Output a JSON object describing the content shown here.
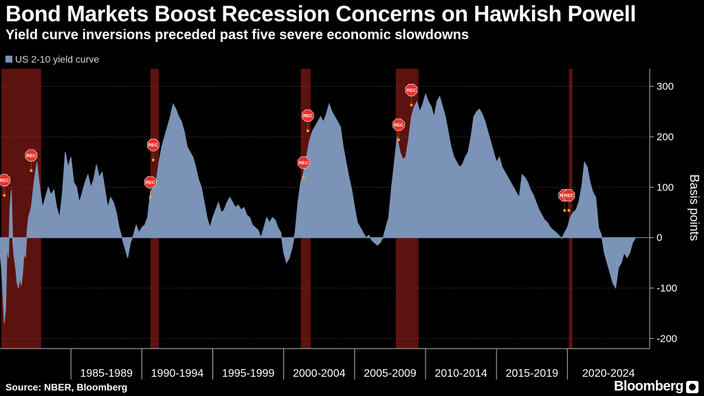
{
  "header": {
    "title": "Bond Markets Boost Recession Concerns on Hawkish Powell",
    "subtitle": "Yield curve inversions preceded past five severe economic slowdowns"
  },
  "footer": {
    "source": "Source: NBER, Bloomberg",
    "brand": "Bloomberg"
  },
  "colors": {
    "series": "#7b93b6",
    "recession": "#5c120f",
    "grid": "#555555",
    "marker": "#e8322a",
    "dot": "#f4a12b"
  },
  "chart_data": {
    "type": "area",
    "title": "Bond Markets Boost Recession Concerns on Hawkish Powell",
    "ylabel": "Basis points",
    "xlim": [
      1980.0,
      2025.8
    ],
    "ylim": [
      -220,
      335
    ],
    "yticks": [
      300,
      200,
      100,
      0,
      -100,
      -200
    ],
    "ytick_labels": [
      "300",
      "200",
      "100",
      "0",
      "-100",
      "-200"
    ],
    "grid": true,
    "legend": "top-left",
    "series": [
      {
        "name": "US 2-10 yield curve",
        "points": [
          [
            1980.0,
            -30
          ],
          [
            1980.1,
            -60
          ],
          [
            1980.2,
            -110
          ],
          [
            1980.3,
            -170
          ],
          [
            1980.4,
            -140
          ],
          [
            1980.5,
            -20
          ],
          [
            1980.6,
            -40
          ],
          [
            1980.7,
            60
          ],
          [
            1980.8,
            95
          ],
          [
            1980.9,
            -10
          ],
          [
            1981.0,
            -40
          ],
          [
            1981.1,
            -60
          ],
          [
            1981.2,
            -90
          ],
          [
            1981.3,
            -100
          ],
          [
            1981.4,
            -80
          ],
          [
            1981.5,
            -95
          ],
          [
            1981.6,
            -70
          ],
          [
            1981.7,
            -30
          ],
          [
            1981.8,
            -40
          ],
          [
            1981.9,
            10
          ],
          [
            1982.0,
            40
          ],
          [
            1982.2,
            60
          ],
          [
            1982.4,
            110
          ],
          [
            1982.6,
            150
          ],
          [
            1982.8,
            100
          ],
          [
            1983.0,
            60
          ],
          [
            1983.2,
            80
          ],
          [
            1983.4,
            100
          ],
          [
            1983.6,
            85
          ],
          [
            1983.8,
            95
          ],
          [
            1984.0,
            60
          ],
          [
            1984.2,
            40
          ],
          [
            1984.4,
            90
          ],
          [
            1984.6,
            170
          ],
          [
            1984.8,
            140
          ],
          [
            1985.0,
            160
          ],
          [
            1985.2,
            110
          ],
          [
            1985.4,
            100
          ],
          [
            1985.6,
            70
          ],
          [
            1985.8,
            90
          ],
          [
            1986.0,
            110
          ],
          [
            1986.2,
            125
          ],
          [
            1986.4,
            100
          ],
          [
            1986.6,
            115
          ],
          [
            1986.8,
            145
          ],
          [
            1987.0,
            120
          ],
          [
            1987.2,
            130
          ],
          [
            1987.4,
            95
          ],
          [
            1987.6,
            60
          ],
          [
            1987.8,
            80
          ],
          [
            1988.0,
            70
          ],
          [
            1988.2,
            50
          ],
          [
            1988.4,
            20
          ],
          [
            1988.6,
            0
          ],
          [
            1988.8,
            -20
          ],
          [
            1989.0,
            -40
          ],
          [
            1989.2,
            -10
          ],
          [
            1989.4,
            5
          ],
          [
            1989.6,
            25
          ],
          [
            1989.8,
            10
          ],
          [
            1990.0,
            20
          ],
          [
            1990.2,
            25
          ],
          [
            1990.4,
            40
          ],
          [
            1990.6,
            90
          ],
          [
            1990.8,
            100
          ],
          [
            1991.0,
            110
          ],
          [
            1991.2,
            150
          ],
          [
            1991.4,
            180
          ],
          [
            1991.6,
            200
          ],
          [
            1991.8,
            220
          ],
          [
            1992.0,
            240
          ],
          [
            1992.2,
            265
          ],
          [
            1992.4,
            255
          ],
          [
            1992.6,
            240
          ],
          [
            1992.8,
            230
          ],
          [
            1993.0,
            210
          ],
          [
            1993.2,
            180
          ],
          [
            1993.4,
            170
          ],
          [
            1993.6,
            160
          ],
          [
            1993.8,
            140
          ],
          [
            1994.0,
            115
          ],
          [
            1994.2,
            100
          ],
          [
            1994.4,
            70
          ],
          [
            1994.6,
            40
          ],
          [
            1994.8,
            20
          ],
          [
            1995.0,
            40
          ],
          [
            1995.2,
            55
          ],
          [
            1995.4,
            70
          ],
          [
            1995.6,
            50
          ],
          [
            1995.8,
            55
          ],
          [
            1996.0,
            70
          ],
          [
            1996.2,
            80
          ],
          [
            1996.4,
            70
          ],
          [
            1996.6,
            60
          ],
          [
            1996.8,
            65
          ],
          [
            1997.0,
            55
          ],
          [
            1997.2,
            60
          ],
          [
            1997.4,
            45
          ],
          [
            1997.6,
            40
          ],
          [
            1997.8,
            25
          ],
          [
            1998.0,
            20
          ],
          [
            1998.2,
            15
          ],
          [
            1998.4,
            0
          ],
          [
            1998.6,
            20
          ],
          [
            1998.8,
            40
          ],
          [
            1999.0,
            30
          ],
          [
            1999.2,
            40
          ],
          [
            1999.4,
            35
          ],
          [
            1999.6,
            20
          ],
          [
            1999.8,
            10
          ],
          [
            2000.0,
            -30
          ],
          [
            2000.2,
            -50
          ],
          [
            2000.4,
            -40
          ],
          [
            2000.6,
            -20
          ],
          [
            2000.8,
            10
          ],
          [
            2001.0,
            70
          ],
          [
            2001.2,
            110
          ],
          [
            2001.4,
            130
          ],
          [
            2001.6,
            160
          ],
          [
            2001.8,
            190
          ],
          [
            2002.0,
            210
          ],
          [
            2002.2,
            220
          ],
          [
            2002.4,
            230
          ],
          [
            2002.6,
            240
          ],
          [
            2002.8,
            230
          ],
          [
            2003.0,
            245
          ],
          [
            2003.2,
            265
          ],
          [
            2003.4,
            250
          ],
          [
            2003.6,
            240
          ],
          [
            2003.8,
            230
          ],
          [
            2004.0,
            220
          ],
          [
            2004.2,
            180
          ],
          [
            2004.4,
            150
          ],
          [
            2004.6,
            120
          ],
          [
            2004.8,
            95
          ],
          [
            2005.0,
            60
          ],
          [
            2005.2,
            30
          ],
          [
            2005.4,
            20
          ],
          [
            2005.6,
            10
          ],
          [
            2005.8,
            0
          ],
          [
            2006.0,
            5
          ],
          [
            2006.2,
            -5
          ],
          [
            2006.4,
            -10
          ],
          [
            2006.6,
            -15
          ],
          [
            2006.8,
            -10
          ],
          [
            2007.0,
            0
          ],
          [
            2007.2,
            20
          ],
          [
            2007.4,
            40
          ],
          [
            2007.6,
            100
          ],
          [
            2007.8,
            150
          ],
          [
            2008.0,
            200
          ],
          [
            2008.2,
            170
          ],
          [
            2008.4,
            155
          ],
          [
            2008.6,
            160
          ],
          [
            2008.8,
            195
          ],
          [
            2009.0,
            240
          ],
          [
            2009.2,
            260
          ],
          [
            2009.4,
            270
          ],
          [
            2009.6,
            250
          ],
          [
            2009.8,
            265
          ],
          [
            2010.0,
            285
          ],
          [
            2010.2,
            270
          ],
          [
            2010.4,
            260
          ],
          [
            2010.6,
            240
          ],
          [
            2010.8,
            270
          ],
          [
            2011.0,
            280
          ],
          [
            2011.2,
            260
          ],
          [
            2011.4,
            240
          ],
          [
            2011.6,
            210
          ],
          [
            2011.8,
            180
          ],
          [
            2012.0,
            160
          ],
          [
            2012.2,
            150
          ],
          [
            2012.4,
            140
          ],
          [
            2012.6,
            145
          ],
          [
            2012.8,
            160
          ],
          [
            2013.0,
            170
          ],
          [
            2013.2,
            200
          ],
          [
            2013.4,
            240
          ],
          [
            2013.6,
            250
          ],
          [
            2013.8,
            255
          ],
          [
            2014.0,
            245
          ],
          [
            2014.2,
            230
          ],
          [
            2014.4,
            210
          ],
          [
            2014.6,
            190
          ],
          [
            2014.8,
            170
          ],
          [
            2015.0,
            150
          ],
          [
            2015.2,
            160
          ],
          [
            2015.4,
            140
          ],
          [
            2015.6,
            130
          ],
          [
            2015.8,
            120
          ],
          [
            2016.0,
            110
          ],
          [
            2016.2,
            100
          ],
          [
            2016.4,
            90
          ],
          [
            2016.6,
            80
          ],
          [
            2016.8,
            125
          ],
          [
            2017.0,
            120
          ],
          [
            2017.2,
            110
          ],
          [
            2017.4,
            95
          ],
          [
            2017.6,
            85
          ],
          [
            2017.8,
            70
          ],
          [
            2018.0,
            55
          ],
          [
            2018.2,
            45
          ],
          [
            2018.4,
            35
          ],
          [
            2018.6,
            30
          ],
          [
            2018.8,
            20
          ],
          [
            2019.0,
            15
          ],
          [
            2019.2,
            10
          ],
          [
            2019.4,
            5
          ],
          [
            2019.6,
            -2
          ],
          [
            2019.8,
            10
          ],
          [
            2020.0,
            20
          ],
          [
            2020.2,
            40
          ],
          [
            2020.4,
            50
          ],
          [
            2020.6,
            55
          ],
          [
            2020.8,
            70
          ],
          [
            2021.0,
            100
          ],
          [
            2021.2,
            150
          ],
          [
            2021.4,
            140
          ],
          [
            2021.6,
            110
          ],
          [
            2021.8,
            90
          ],
          [
            2022.0,
            80
          ],
          [
            2022.2,
            20
          ],
          [
            2022.4,
            5
          ],
          [
            2022.6,
            -30
          ],
          [
            2022.8,
            -50
          ],
          [
            2023.0,
            -70
          ],
          [
            2023.2,
            -90
          ],
          [
            2023.4,
            -100
          ],
          [
            2023.6,
            -60
          ],
          [
            2023.8,
            -50
          ],
          [
            2024.0,
            -30
          ],
          [
            2024.2,
            -40
          ],
          [
            2024.4,
            -30
          ],
          [
            2024.6,
            -10
          ],
          [
            2024.8,
            0
          ]
        ]
      }
    ],
    "recessions": [
      [
        1980.1,
        1982.9
      ],
      [
        1990.6,
        1991.2
      ],
      [
        2001.2,
        2001.9
      ],
      [
        2007.9,
        2009.5
      ],
      [
        2020.1,
        2020.35
      ]
    ],
    "markers": [
      {
        "label": "REC",
        "x": 1980.3,
        "y": 114
      },
      {
        "label": "REC",
        "x": 1982.2,
        "y": 163
      },
      {
        "label": "REC",
        "x": 1990.6,
        "y": 110
      },
      {
        "label": "REC",
        "x": 1990.8,
        "y": 184
      },
      {
        "label": "REC",
        "x": 2001.4,
        "y": 149
      },
      {
        "label": "REC",
        "x": 2001.7,
        "y": 242
      },
      {
        "label": "REC",
        "x": 2008.1,
        "y": 224
      },
      {
        "label": "REC",
        "x": 2009.0,
        "y": 293
      },
      {
        "label": "REC",
        "x": 2019.8,
        "y": 84
      },
      {
        "label": "REC",
        "x": 2020.1,
        "y": 84
      }
    ],
    "period_labels": [
      "1985-1989",
      "1990-1994",
      "1995-1999",
      "2000-2004",
      "2005-2009",
      "2010-2014",
      "2015-2019",
      "2020-2024"
    ],
    "period_starts": [
      1985,
      1990,
      1995,
      2000,
      2005,
      2010,
      2015,
      2020
    ]
  }
}
